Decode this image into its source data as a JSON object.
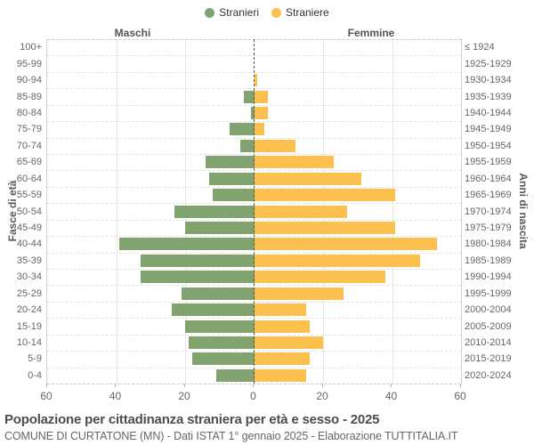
{
  "legend": [
    {
      "label": "Stranieri",
      "color": "#81a36f"
    },
    {
      "label": "Straniere",
      "color": "#fbc04d"
    }
  ],
  "headers": {
    "male": "Maschi",
    "female": "Femmine"
  },
  "axes": {
    "left_title": "Fasce di età",
    "right_title": "Anni di nascita"
  },
  "footer": {
    "title": "Popolazione per cittadinanza straniera per età e sesso - 2025",
    "subtitle": "COMUNE DI CURTATONE (MN) - Dati ISTAT 1° gennaio 2025 - Elaborazione TUTTITALIA.IT"
  },
  "chart_data": {
    "type": "bar",
    "variant": "population-pyramid",
    "title": "Popolazione per cittadinanza straniera per età e sesso - 2025",
    "subtitle": "COMUNE DI CURTATONE (MN) - Dati ISTAT 1° gennaio 2025 - Elaborazione TUTTITALIA.IT",
    "xlabel": "",
    "ylabel_left": "Fasce di età",
    "ylabel_right": "Anni di nascita",
    "xlim": [
      -60,
      60
    ],
    "x_tick_interval": 20,
    "x_tick_labels": [
      "60",
      "40",
      "20",
      "0",
      "20",
      "40",
      "60"
    ],
    "grid": true,
    "legend_position": "top",
    "categories_age": [
      "100+",
      "95-99",
      "90-94",
      "85-89",
      "80-84",
      "75-79",
      "70-74",
      "65-69",
      "60-64",
      "55-59",
      "50-54",
      "45-49",
      "40-44",
      "35-39",
      "30-34",
      "25-29",
      "20-24",
      "15-19",
      "10-14",
      "5-9",
      "0-4"
    ],
    "categories_birth_years": [
      "≤ 1924",
      "1925-1929",
      "1930-1934",
      "1935-1939",
      "1940-1944",
      "1945-1949",
      "1950-1954",
      "1955-1959",
      "1960-1964",
      "1965-1969",
      "1970-1974",
      "1975-1979",
      "1980-1984",
      "1985-1989",
      "1990-1994",
      "1995-1999",
      "2000-2004",
      "2005-2009",
      "2010-2014",
      "2015-2019",
      "2020-2024"
    ],
    "series": [
      {
        "name": "Stranieri",
        "side": "left",
        "color": "#81a36f",
        "values": [
          0,
          0,
          0,
          3,
          1,
          7,
          4,
          14,
          13,
          12,
          23,
          20,
          39,
          33,
          33,
          21,
          24,
          20,
          19,
          18,
          11
        ]
      },
      {
        "name": "Straniere",
        "side": "right",
        "color": "#fbc04d",
        "values": [
          0,
          0,
          1,
          4,
          4,
          3,
          12,
          23,
          31,
          41,
          27,
          41,
          53,
          48,
          38,
          26,
          15,
          16,
          20,
          16,
          15
        ]
      }
    ]
  }
}
